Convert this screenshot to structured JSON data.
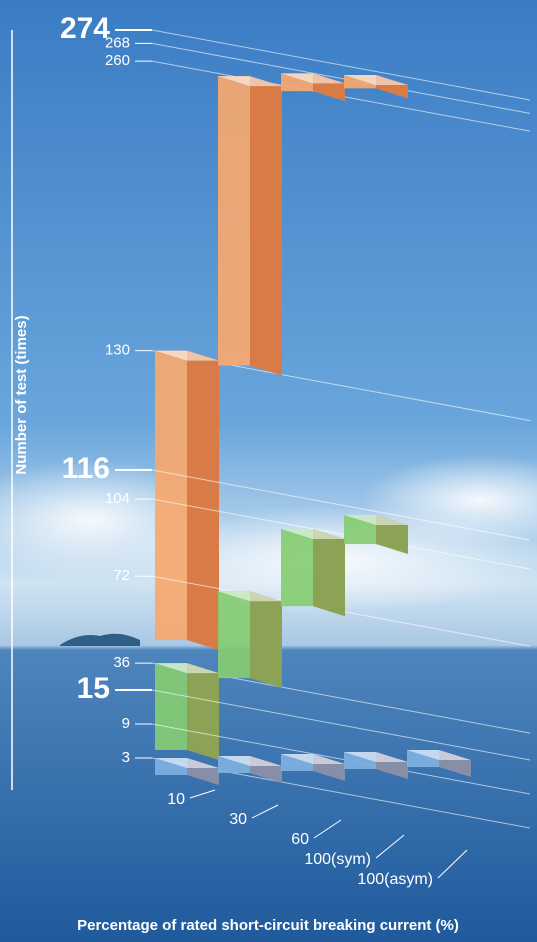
{
  "chart_data": {
    "type": "bar3d",
    "ylabel": "Number of test (times)",
    "xlabel": "Percentage of rated short-circuit breaking current (%)",
    "categories": [
      "10",
      "30",
      "60",
      "100(sym)",
      "100(asym)"
    ],
    "series": [
      {
        "color": "#f7a86e",
        "values": [
          130,
          130,
          8,
          6,
          null
        ],
        "ylim": [
          0,
          274
        ],
        "yticks": [
          130,
          260,
          268,
          274
        ]
      },
      {
        "color": "#86cc72",
        "values": [
          36,
          36,
          32,
          12,
          null
        ],
        "ylim": [
          0,
          116
        ],
        "yticks": [
          36,
          72,
          104,
          116
        ]
      },
      {
        "color": "#7fb0e0",
        "values": [
          3,
          3,
          3,
          3,
          3
        ],
        "ylim": [
          0,
          15
        ],
        "yticks": [
          3,
          9,
          15
        ]
      }
    ]
  }
}
